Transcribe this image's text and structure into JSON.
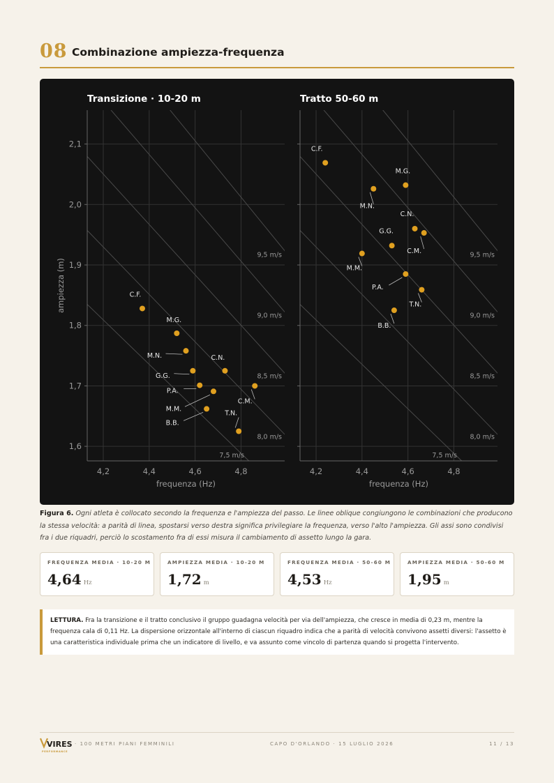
{
  "header": {
    "section_number": "08",
    "title": "Combinazione ampiezza-frequenza"
  },
  "chart_data": [
    {
      "type": "scatter",
      "title": "Transizione · 10-20 m",
      "xlabel": "frequenza (Hz)",
      "ylabel": "ampiezza (m)",
      "xlim": [
        4.13,
        4.99
      ],
      "ylim": [
        1.576,
        2.156
      ],
      "x_ticks": [
        4.2,
        4.4,
        4.6,
        4.8
      ],
      "y_ticks": [
        1.6,
        1.7,
        1.8,
        1.9,
        2.0,
        2.1
      ],
      "x_tick_labels": [
        "4,2",
        "4,4",
        "4,6",
        "4,8"
      ],
      "y_tick_labels": [
        "1,6",
        "1,7",
        "1,8",
        "1,9",
        "2,0",
        "2,1"
      ],
      "grid": true,
      "speed_lines": [
        7.5,
        8.0,
        8.5,
        9.0,
        9.5
      ],
      "speed_labels": [
        "7,5 m/s",
        "8,0 m/s",
        "8,5 m/s",
        "9,0 m/s",
        "9,5 m/s"
      ],
      "points": [
        {
          "label": "C.F.",
          "x": 4.37,
          "y": 1.828
        },
        {
          "label": "M.G.",
          "x": 4.52,
          "y": 1.787
        },
        {
          "label": "M.N.",
          "x": 4.56,
          "y": 1.758
        },
        {
          "label": "C.N.",
          "x": 4.73,
          "y": 1.725
        },
        {
          "label": "G.G.",
          "x": 4.59,
          "y": 1.725
        },
        {
          "label": "P.A.",
          "x": 4.62,
          "y": 1.701
        },
        {
          "label": "M.M.",
          "x": 4.68,
          "y": 1.691
        },
        {
          "label": "C.M.",
          "x": 4.86,
          "y": 1.7
        },
        {
          "label": "B.B.",
          "x": 4.65,
          "y": 1.662
        },
        {
          "label": "T.N.",
          "x": 4.79,
          "y": 1.625
        }
      ]
    },
    {
      "type": "scatter",
      "title": "Tratto 50-60 m",
      "xlabel": "frequenza (Hz)",
      "xlim": [
        4.13,
        4.99
      ],
      "ylim": [
        1.576,
        2.156
      ],
      "x_ticks": [
        4.2,
        4.4,
        4.6,
        4.8
      ],
      "x_tick_labels": [
        "4,2",
        "4,4",
        "4,6",
        "4,8"
      ],
      "grid": true,
      "speed_lines": [
        7.5,
        8.0,
        8.5,
        9.0,
        9.5
      ],
      "speed_labels": [
        "7,5 m/s",
        "8,0 m/s",
        "8,5 m/s",
        "9,0 m/s",
        "9,5 m/s"
      ],
      "points": [
        {
          "label": "C.F.",
          "x": 4.24,
          "y": 2.069
        },
        {
          "label": "M.N.",
          "x": 4.45,
          "y": 2.026
        },
        {
          "label": "M.G.",
          "x": 4.59,
          "y": 2.032
        },
        {
          "label": "C.N.",
          "x": 4.63,
          "y": 1.96
        },
        {
          "label": "C.M.",
          "x": 4.67,
          "y": 1.953
        },
        {
          "label": "G.G.",
          "x": 4.53,
          "y": 1.932
        },
        {
          "label": "M.M.",
          "x": 4.4,
          "y": 1.919
        },
        {
          "label": "P.A.",
          "x": 4.59,
          "y": 1.885
        },
        {
          "label": "T.N.",
          "x": 4.66,
          "y": 1.859
        },
        {
          "label": "B.B.",
          "x": 4.54,
          "y": 1.825
        }
      ]
    }
  ],
  "caption": {
    "lead": "Figura 6.",
    "text": "Ogni atleta è collocato secondo la frequenza e l'ampiezza del passo. Le linee oblique congiungono le combinazioni che producono la stessa velocità: a parità di linea, spostarsi verso destra significa privilegiare la frequenza, verso l'alto l'ampiezza. Gli assi sono condivisi fra i due riquadri, perciò lo scostamento fra di essi misura il cambiamento di assetto lungo la gara."
  },
  "kpis": [
    {
      "label": "FREQUENZA MEDIA · 10-20 M",
      "value": "4,64",
      "unit": "Hz"
    },
    {
      "label": "AMPIEZZA MEDIA · 10-20 M",
      "value": "1,72",
      "unit": "m"
    },
    {
      "label": "FREQUENZA MEDIA · 50-60 M",
      "value": "4,53",
      "unit": "Hz"
    },
    {
      "label": "AMPIEZZA MEDIA · 50-60 M",
      "value": "1,95",
      "unit": "m"
    }
  ],
  "lettura": {
    "lead": "LETTURA.",
    "text": "Fra la transizione e il tratto conclusivo il gruppo guadagna velocità per via dell'ampiezza, che cresce in media di 0,23 m, mentre la frequenza cala di 0,11 Hz. La dispersione orizzontale all'interno di ciascun riquadro indica che a parità di velocità convivono assetti diversi: l'assetto è una caratteristica individuale prima che un indicatore di livello, e va assunto come vincolo di partenza quando si progetta l'intervento."
  },
  "footer": {
    "logo_text": "VIRES",
    "logo_sub": "PERFORMANCE",
    "left": "· 100 METRI PIANI FEMMINILI",
    "center": "CAPO D'ORLANDO · 15 LUGLIO 2026",
    "right": "11 / 13"
  },
  "colors": {
    "accent": "#c99a3c",
    "point": "#e0a020",
    "chart_bg": "#131313",
    "page_bg": "#f6f2ea"
  }
}
